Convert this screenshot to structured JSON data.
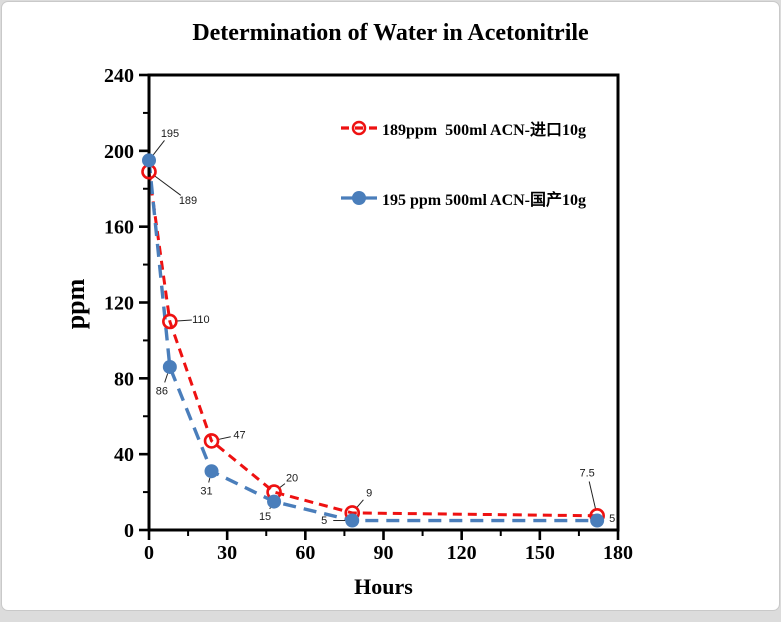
{
  "frame": {
    "background": "#ffffff",
    "border_color": "#c9c9c9",
    "outer_background": "#dcdcdc"
  },
  "chart_data": {
    "type": "line",
    "title": "Determination of Water in Acetonitrile",
    "xlabel": "Hours",
    "ylabel": "ppm",
    "xlim": [
      0,
      180
    ],
    "ylim": [
      0,
      240
    ],
    "x_major_ticks": [
      0,
      30,
      60,
      90,
      120,
      150,
      180
    ],
    "y_major_ticks": [
      0,
      40,
      80,
      120,
      160,
      200,
      240
    ],
    "x_minor_tick_step": 15,
    "y_minor_tick_step": 20,
    "grid": false,
    "legend_position": "inside-upper-right",
    "series": [
      {
        "name": "189ppm  500ml ACN-进口10g",
        "color": "#ee1111",
        "line_style": "dashed",
        "marker": "open-circle",
        "x": [
          0,
          8,
          24,
          48,
          78,
          172
        ],
        "values": [
          189,
          110,
          47,
          20,
          9,
          7.5
        ],
        "point_labels": [
          "189",
          "110",
          "47",
          "20",
          "9",
          "7.5"
        ]
      },
      {
        "name": "195 ppm 500ml ACN-国产10g",
        "color": "#4a7ebb",
        "line_style": "dashed",
        "marker": "filled-circle",
        "x": [
          0,
          8,
          24,
          48,
          78,
          172
        ],
        "values": [
          195,
          86,
          31,
          15,
          5,
          5
        ],
        "point_labels": [
          "195",
          "86",
          "31",
          "15",
          "5",
          "5"
        ]
      }
    ]
  }
}
